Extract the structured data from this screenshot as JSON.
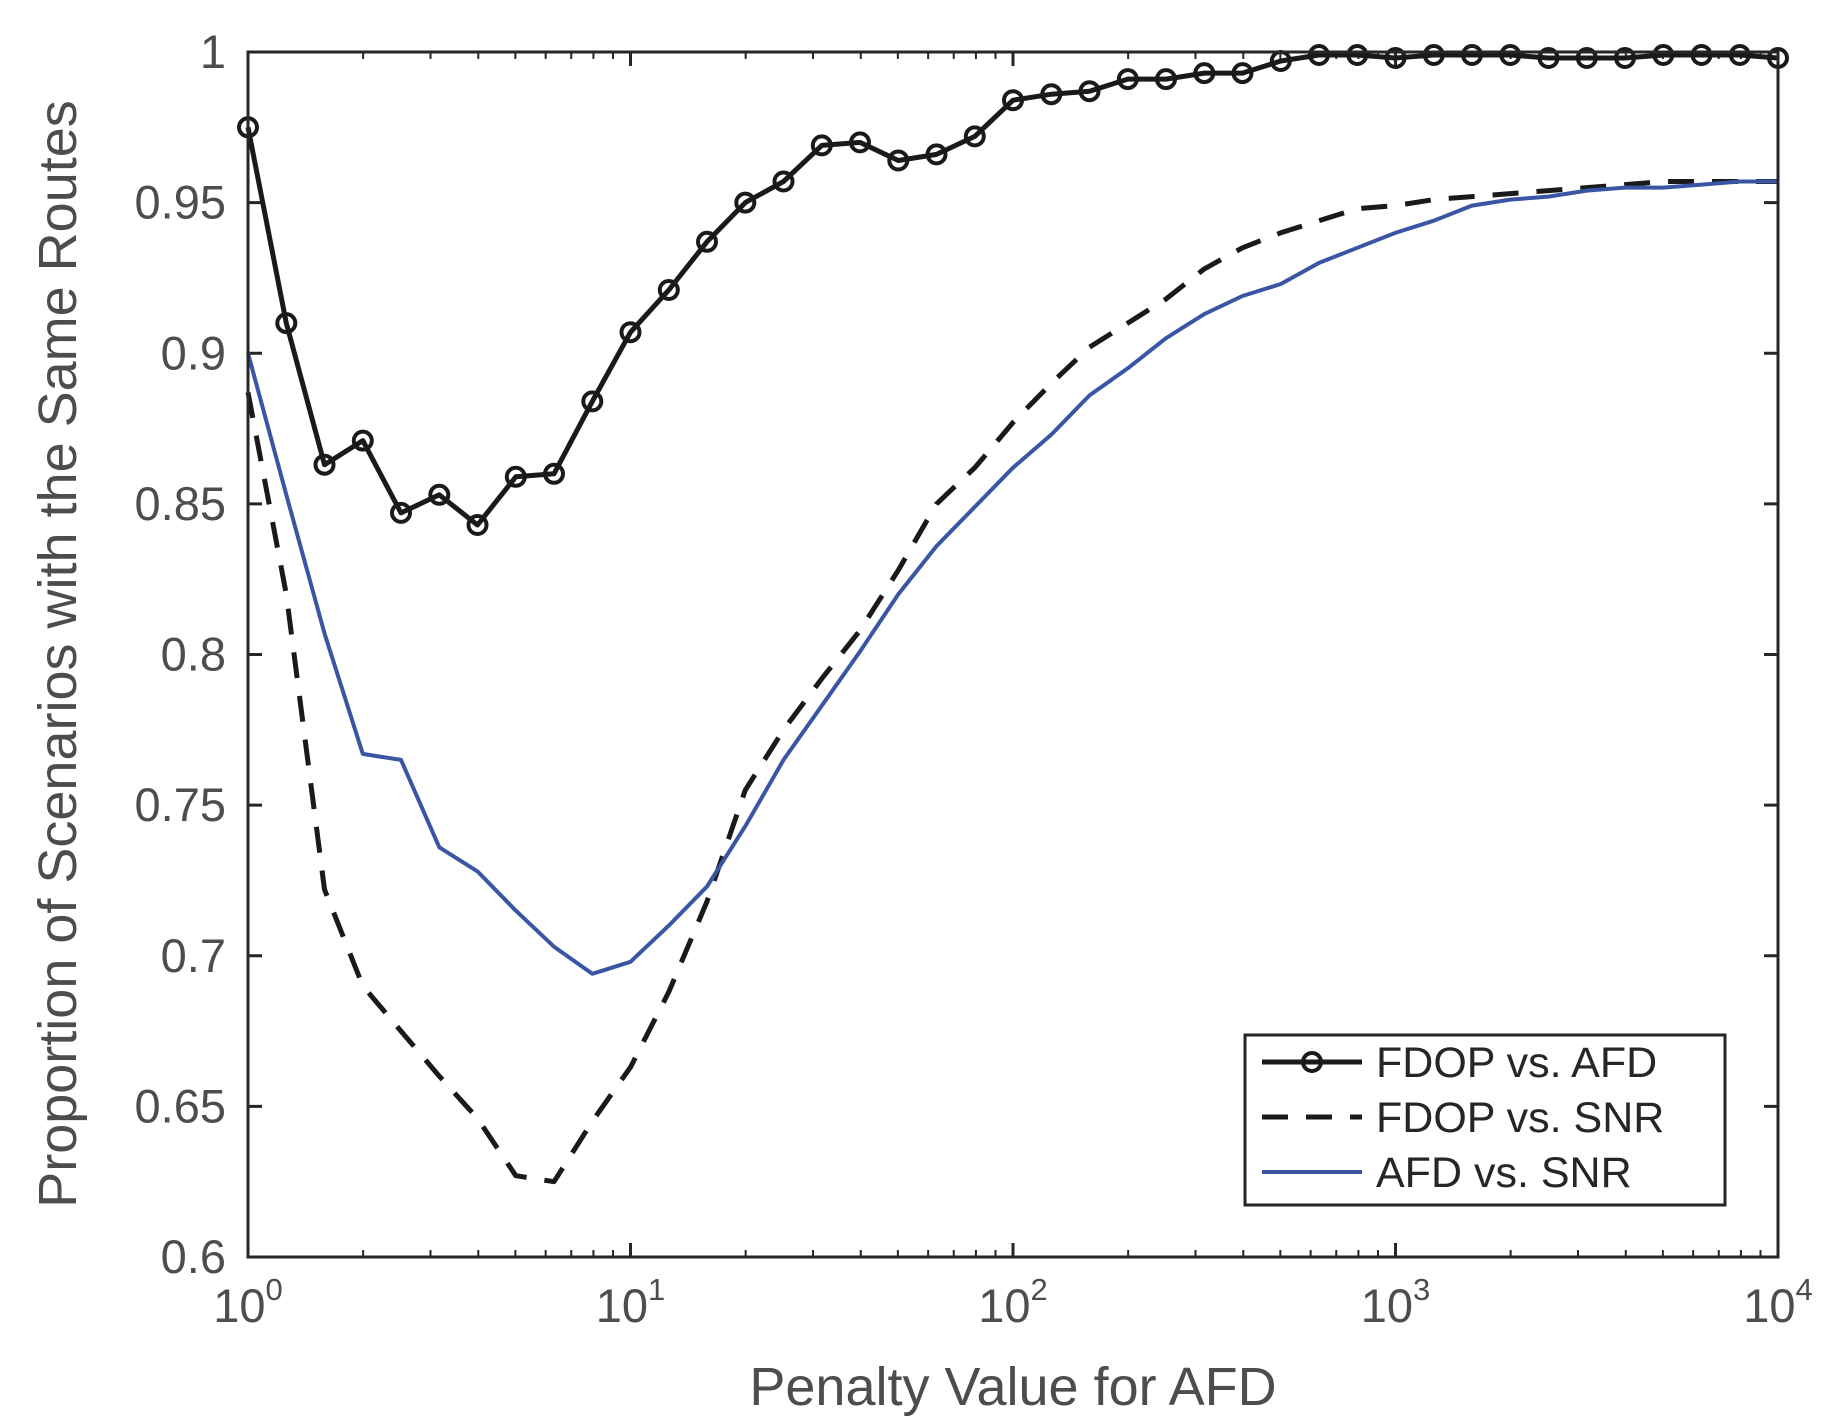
{
  "chart_data": {
    "type": "line",
    "xscale": "log",
    "xlim": [
      1,
      10000
    ],
    "ylim": [
      0.6,
      1.0
    ],
    "xlabel": "Penalty Value for AFD",
    "ylabel": "Proportion of Scenarios with the Same Routes",
    "x_ticks": [
      {
        "base": "10",
        "exp": "0",
        "value": 1
      },
      {
        "base": "10",
        "exp": "1",
        "value": 10
      },
      {
        "base": "10",
        "exp": "2",
        "value": 100
      },
      {
        "base": "10",
        "exp": "3",
        "value": 1000
      },
      {
        "base": "10",
        "exp": "4",
        "value": 10000
      }
    ],
    "y_ticks": [
      {
        "label": "0.6",
        "value": 0.6
      },
      {
        "label": "0.65",
        "value": 0.65
      },
      {
        "label": "0.7",
        "value": 0.7
      },
      {
        "label": "0.75",
        "value": 0.75
      },
      {
        "label": "0.8",
        "value": 0.8
      },
      {
        "label": "0.85",
        "value": 0.85
      },
      {
        "label": "0.9",
        "value": 0.9
      },
      {
        "label": "0.95",
        "value": 0.95
      },
      {
        "label": "1",
        "value": 1.0
      }
    ],
    "legend_position": "bottom-right",
    "series": [
      {
        "name": "FDOP vs. AFD",
        "color": "#1a1a1a",
        "style": "solid-markers",
        "log_x": [
          0,
          0.1,
          0.2,
          0.3,
          0.4,
          0.5,
          0.6,
          0.7,
          0.8,
          0.9,
          1.0,
          1.1,
          1.2,
          1.3,
          1.4,
          1.5,
          1.6,
          1.7,
          1.8,
          1.9,
          2.0,
          2.1,
          2.2,
          2.3,
          2.4,
          2.5,
          2.6,
          2.7,
          2.8,
          2.9,
          3.0,
          3.1,
          3.2,
          3.3,
          3.4,
          3.5,
          3.6,
          3.7,
          3.8,
          3.9,
          4.0
        ],
        "values": [
          0.975,
          0.91,
          0.863,
          0.871,
          0.847,
          0.853,
          0.843,
          0.859,
          0.86,
          0.884,
          0.907,
          0.921,
          0.937,
          0.95,
          0.957,
          0.969,
          0.97,
          0.964,
          0.966,
          0.972,
          0.984,
          0.986,
          0.987,
          0.991,
          0.991,
          0.993,
          0.993,
          0.997,
          0.999,
          0.999,
          0.998,
          0.999,
          0.999,
          0.999,
          0.998,
          0.998,
          0.998,
          0.999,
          0.999,
          0.999,
          0.998
        ]
      },
      {
        "name": "FDOP vs. SNR",
        "color": "#1a1a1a",
        "style": "dashed",
        "log_x": [
          0,
          0.1,
          0.2,
          0.3,
          0.4,
          0.5,
          0.6,
          0.7,
          0.8,
          0.9,
          1.0,
          1.1,
          1.2,
          1.3,
          1.4,
          1.5,
          1.6,
          1.7,
          1.8,
          1.9,
          2.0,
          2.1,
          2.2,
          2.3,
          2.4,
          2.5,
          2.6,
          2.7,
          2.8,
          2.9,
          3.0,
          3.1,
          3.2,
          3.3,
          3.4,
          3.5,
          3.6,
          3.7,
          3.8,
          3.9,
          4.0
        ],
        "values": [
          0.887,
          0.82,
          0.722,
          0.69,
          0.675,
          0.66,
          0.646,
          0.627,
          0.625,
          0.645,
          0.663,
          0.688,
          0.718,
          0.755,
          0.775,
          0.792,
          0.808,
          0.828,
          0.85,
          0.862,
          0.877,
          0.89,
          0.902,
          0.91,
          0.918,
          0.928,
          0.935,
          0.94,
          0.944,
          0.948,
          0.949,
          0.951,
          0.952,
          0.953,
          0.954,
          0.955,
          0.956,
          0.957,
          0.957,
          0.957,
          0.957
        ]
      },
      {
        "name": "AFD vs. SNR",
        "color": "#3a55a4",
        "style": "solid",
        "log_x": [
          0,
          0.1,
          0.2,
          0.3,
          0.4,
          0.5,
          0.6,
          0.7,
          0.8,
          0.9,
          1.0,
          1.1,
          1.2,
          1.3,
          1.4,
          1.5,
          1.6,
          1.7,
          1.8,
          1.9,
          2.0,
          2.1,
          2.2,
          2.3,
          2.4,
          2.5,
          2.6,
          2.7,
          2.8,
          2.9,
          3.0,
          3.1,
          3.2,
          3.3,
          3.4,
          3.5,
          3.6,
          3.7,
          3.8,
          3.9,
          4.0
        ],
        "values": [
          0.9,
          0.853,
          0.807,
          0.767,
          0.765,
          0.736,
          0.728,
          0.715,
          0.703,
          0.694,
          0.698,
          0.71,
          0.723,
          0.743,
          0.765,
          0.783,
          0.801,
          0.82,
          0.836,
          0.849,
          0.862,
          0.873,
          0.886,
          0.895,
          0.905,
          0.913,
          0.919,
          0.923,
          0.93,
          0.935,
          0.94,
          0.944,
          0.949,
          0.951,
          0.952,
          0.954,
          0.955,
          0.955,
          0.956,
          0.957,
          0.957
        ]
      }
    ]
  }
}
